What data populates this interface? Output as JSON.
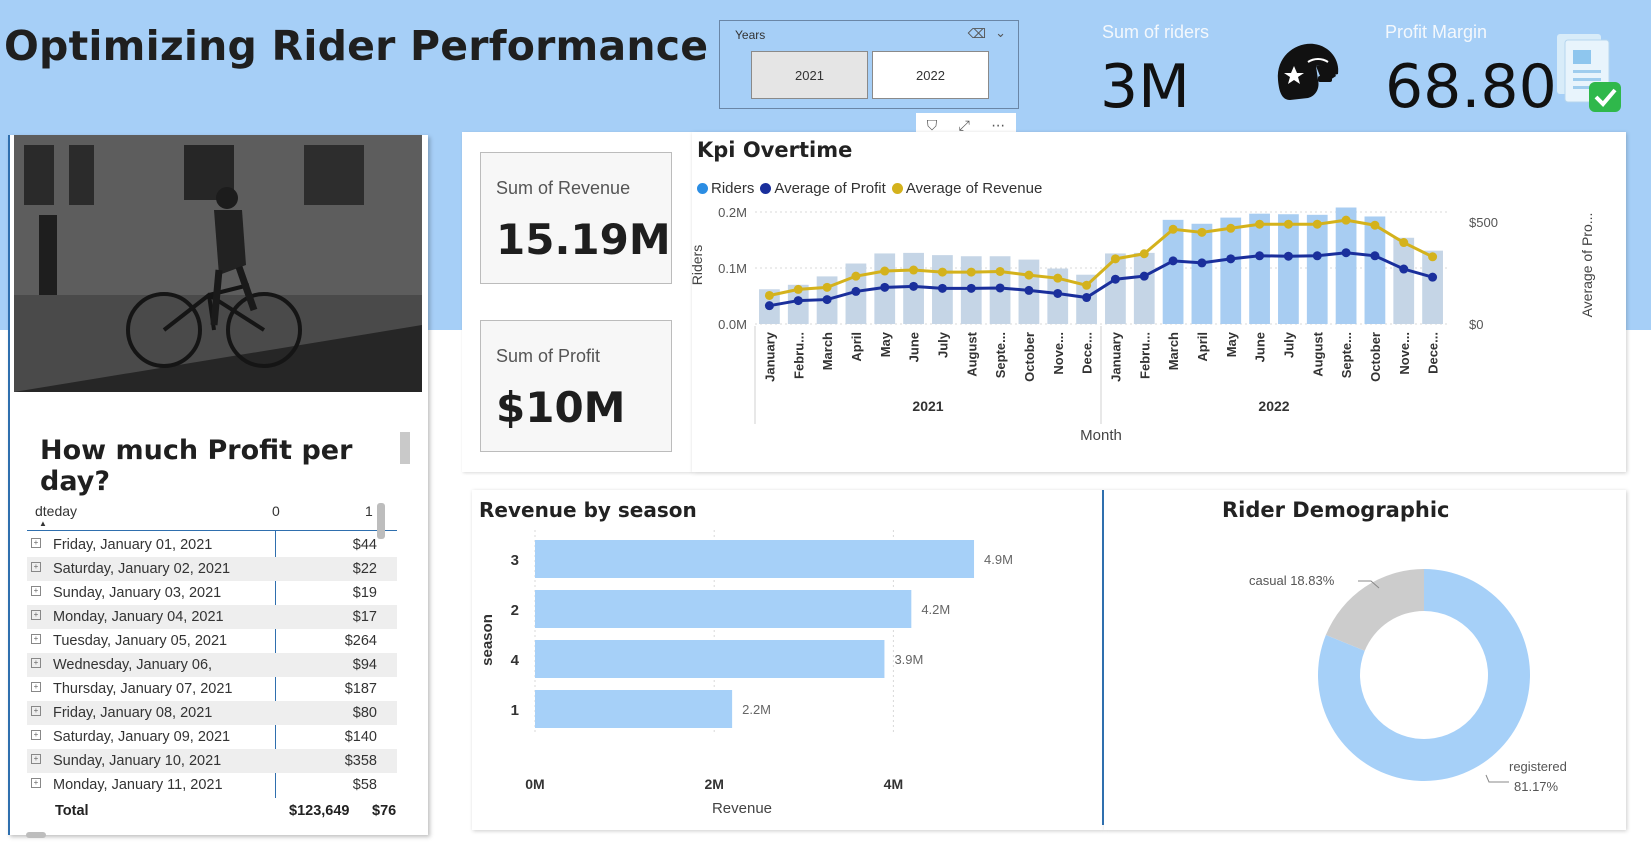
{
  "report": {
    "title": "Optimizing Rider Performance"
  },
  "slicer": {
    "title": "Years",
    "options": [
      "2021",
      "2022"
    ]
  },
  "visual_tools": {
    "filter": "⛉",
    "focus": "⤢",
    "more": "⋯"
  },
  "kpis": {
    "riders": {
      "label": "Sum of riders",
      "value": "3M"
    },
    "margin": {
      "label": "Profit Margin",
      "value": "68.80"
    }
  },
  "table": {
    "heading": "How much Profit per day?",
    "columns": [
      "dteday",
      "0",
      "1"
    ],
    "rows": [
      {
        "date": "Friday, January 01, 2021",
        "value": "$44"
      },
      {
        "date": "Saturday, January 02, 2021",
        "value": "$22"
      },
      {
        "date": "Sunday, January 03, 2021",
        "value": "$19"
      },
      {
        "date": "Monday, January 04, 2021",
        "value": "$17"
      },
      {
        "date": "Tuesday, January 05, 2021",
        "value": "$264"
      },
      {
        "date": "Wednesday, January 06,",
        "value": "$94"
      },
      {
        "date": "Thursday, January 07, 2021",
        "value": "$187"
      },
      {
        "date": "Friday, January 08, 2021",
        "value": "$80"
      },
      {
        "date": "Saturday, January 09, 2021",
        "value": "$140"
      },
      {
        "date": "Sunday, January 10, 2021",
        "value": "$358"
      },
      {
        "date": "Monday, January 11, 2021",
        "value": "$58"
      }
    ],
    "total_label": "Total",
    "total_value": "$123,649",
    "total_value_2": "$76"
  },
  "cards": {
    "revenue": {
      "label": "Sum of Revenue",
      "value": "15.19M"
    },
    "profit": {
      "label": "Sum of Profit",
      "value": "$10M"
    }
  },
  "chart_data": [
    {
      "type": "bar+line",
      "title": "Kpi Overtime",
      "legend": [
        "Riders",
        "Average of Profit",
        "Average of Revenue"
      ],
      "colors": {
        "riders_bar": "#a8cdf2",
        "riders_bar_alt": "#c5d5e6",
        "profit": "#1a2f9c",
        "revenue": "#d4b21c",
        "legend_riders": "#2b8de3"
      },
      "categories": [
        "January",
        "Febru...",
        "March",
        "April",
        "May",
        "June",
        "July",
        "August",
        "Septe...",
        "October",
        "Nove...",
        "Dece...",
        "January",
        "Febru...",
        "March",
        "April",
        "May",
        "June",
        "July",
        "August",
        "Septe...",
        "October",
        "Nove...",
        "Dece..."
      ],
      "groups": [
        {
          "label": "2021",
          "count": 12
        },
        {
          "label": "2022",
          "count": 12
        }
      ],
      "riders": [
        0.062,
        0.07,
        0.085,
        0.108,
        0.126,
        0.127,
        0.123,
        0.121,
        0.121,
        0.115,
        0.099,
        0.088,
        0.126,
        0.127,
        0.186,
        0.179,
        0.19,
        0.197,
        0.196,
        0.195,
        0.208,
        0.192,
        0.154,
        0.131
      ],
      "avg_profit": [
        90,
        115,
        120,
        160,
        180,
        185,
        175,
        175,
        177,
        165,
        150,
        130,
        220,
        235,
        310,
        300,
        320,
        335,
        333,
        335,
        350,
        335,
        270,
        230
      ],
      "avg_revenue": [
        140,
        170,
        180,
        235,
        260,
        265,
        255,
        255,
        258,
        240,
        225,
        190,
        320,
        345,
        465,
        450,
        470,
        490,
        490,
        490,
        510,
        485,
        400,
        330
      ],
      "y_left": {
        "label": "Riders",
        "ticks": [
          "0.0M",
          "0.1M",
          "0.2M"
        ],
        "max": 0.2
      },
      "y_right": {
        "label": "Average of Pro...",
        "ticks": [
          "$0",
          "$500"
        ],
        "max": 550
      },
      "xlabel": "Month"
    },
    {
      "type": "bar",
      "orientation": "horizontal",
      "title": "Revenue by season",
      "categories": [
        "3",
        "2",
        "4",
        "1"
      ],
      "values": [
        4.9,
        4.2,
        3.9,
        2.2
      ],
      "value_labels": [
        "4.9M",
        "4.2M",
        "3.9M",
        "2.2M"
      ],
      "x_ticks": [
        "0M",
        "2M",
        "4M"
      ],
      "xlim": [
        0,
        5
      ],
      "xlabel": "Revenue",
      "ylabel": "season",
      "color": "#a6d0f8"
    },
    {
      "type": "pie",
      "donut": true,
      "title": "Rider Demographic",
      "labels": [
        "registered",
        "casual"
      ],
      "values": [
        81.17,
        18.83
      ],
      "label_text": [
        "registered",
        "casual 18.83%"
      ],
      "pct_text": "81.17%",
      "colors": [
        "#a6d0f8",
        "#cccccc"
      ]
    }
  ]
}
